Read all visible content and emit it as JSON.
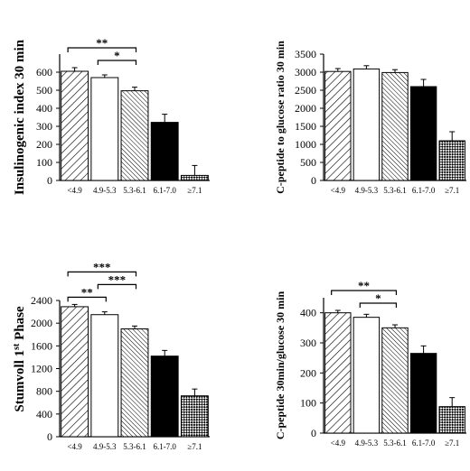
{
  "chart_data": [
    {
      "type": "bar",
      "ylabel": "Insulinogenic index 30 min",
      "categories": [
        "<4.9",
        "4.9-5.3",
        "5.3-6.1",
        "6.1-7.0",
        "≥7.1"
      ],
      "values": [
        605,
        570,
        497,
        322,
        28
      ],
      "errors": [
        20,
        15,
        20,
        45,
        55
      ],
      "ylim": [
        0,
        700
      ],
      "yticks": [
        0,
        100,
        200,
        300,
        400,
        500,
        600
      ],
      "significance": [
        {
          "from": 0,
          "to": 2,
          "label": "**"
        },
        {
          "from": 1,
          "to": 2,
          "label": "*"
        }
      ]
    },
    {
      "type": "bar",
      "ylabel": "C-peptide to glucose ratio 30 min",
      "categories": [
        "<4.9",
        "4.9-5.3",
        "5.3-6.1",
        "6.1-7.0",
        "≥7.1"
      ],
      "values": [
        3020,
        3090,
        2990,
        2600,
        1100
      ],
      "errors": [
        80,
        90,
        80,
        200,
        250
      ],
      "ylim": [
        0,
        3500
      ],
      "yticks": [
        0,
        500,
        1000,
        1500,
        2000,
        2500,
        3000,
        3500
      ],
      "significance": []
    },
    {
      "type": "bar",
      "ylabel": "Stumvoll 1",
      "ylabel_sup": "st",
      "ylabel_suffix": " Phase",
      "categories": [
        "<4.9",
        "4.9-5.3",
        "5.3-6.1",
        "6.1-7.0",
        "≥7.1"
      ],
      "values": [
        2290,
        2150,
        1900,
        1420,
        720
      ],
      "errors": [
        40,
        50,
        50,
        100,
        120
      ],
      "ylim": [
        0,
        2400
      ],
      "yticks": [
        0,
        400,
        800,
        1200,
        1600,
        2000,
        2400
      ],
      "significance": [
        {
          "from": 0,
          "to": 2,
          "label": "***"
        },
        {
          "from": 0,
          "to": 1,
          "label": "**"
        },
        {
          "from": 1,
          "to": 2,
          "label": "***"
        }
      ]
    },
    {
      "type": "bar",
      "ylabel": "C-peptide 30min/glucose 30 min",
      "categories": [
        "<4.9",
        "4.9-5.3",
        "5.3-6.1",
        "6.1-7.0",
        "≥7.1"
      ],
      "values": [
        400,
        385,
        350,
        265,
        88
      ],
      "errors": [
        8,
        10,
        10,
        25,
        30
      ],
      "ylim": [
        0,
        450
      ],
      "yticks": [
        0,
        100,
        200,
        300,
        400
      ],
      "significance": [
        {
          "from": 0,
          "to": 2,
          "label": "**"
        },
        {
          "from": 1,
          "to": 2,
          "label": "*"
        }
      ]
    }
  ],
  "bar_fills": [
    "hatch-wide",
    "white",
    "hatch-dense",
    "black",
    "crosshatch"
  ]
}
